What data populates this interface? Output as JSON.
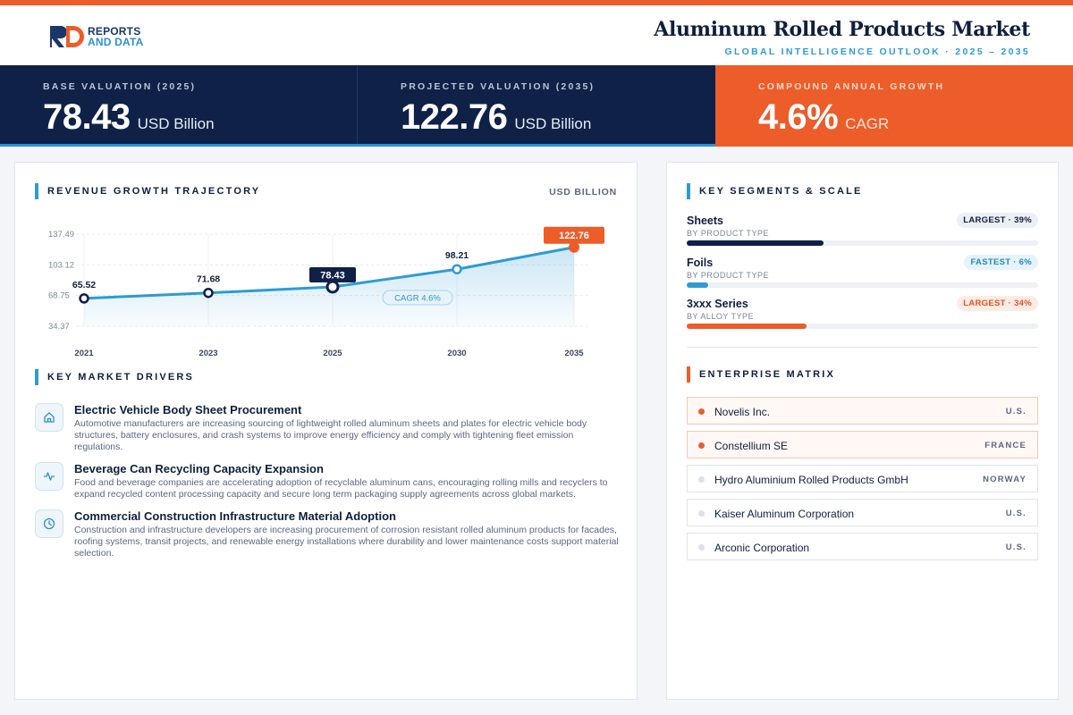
{
  "header": {
    "logo_line1": "REPORTS",
    "logo_line2": "AND DATA",
    "title": "Aluminum Rolled Products Market",
    "subtitle": "GLOBAL INTELLIGENCE OUTLOOK  ·  2025 – 2035"
  },
  "kpis": [
    {
      "label": "BASE VALUATION (2025)",
      "value": "78.43",
      "unit": "USD Billion"
    },
    {
      "label": "PROJECTED VALUATION (2035)",
      "value": "122.76",
      "unit": "USD Billion"
    },
    {
      "label": "COMPOUND ANNUAL GROWTH",
      "value": "4.6%",
      "unit": "CAGR"
    }
  ],
  "trajectory": {
    "title": "REVENUE GROWTH TRAJECTORY",
    "unit": "USD BILLION",
    "cagr_label": "CAGR 4.6%"
  },
  "chart_data": {
    "type": "line",
    "title": "REVENUE GROWTH TRAJECTORY",
    "ylabel": "USD BILLION",
    "x": [
      "2021",
      "2023",
      "2025",
      "2030",
      "2035"
    ],
    "values": [
      65.52,
      71.68,
      78.43,
      98.21,
      122.76
    ],
    "value_labels": [
      "65.52",
      "71.68",
      "78.43",
      "98.21",
      "122.76"
    ],
    "yticks": [
      34.37,
      68.75,
      103.12,
      137.49
    ],
    "ytick_labels": [
      "34.37",
      "68.75",
      "103.12",
      "137.49"
    ],
    "ylim": [
      34.37,
      137.49
    ],
    "grid": true,
    "highlight": {
      "2025": "base",
      "2035": "projected"
    },
    "colors": {
      "line": "#2f9bd3",
      "base": "#0f2147",
      "projected": "#ec5d2a"
    }
  },
  "drivers": {
    "title": "KEY MARKET DRIVERS",
    "items": [
      {
        "icon": "home-icon",
        "title": "Electric Vehicle Body Sheet Procurement",
        "desc": "Automotive manufacturers are increasing sourcing of lightweight rolled aluminum sheets and plates for electric vehicle body structures, battery enclosures, and crash systems to improve energy efficiency and comply with tightening fleet emission regulations."
      },
      {
        "icon": "activity-icon",
        "title": "Beverage Can Recycling Capacity Expansion",
        "desc": "Food and beverage companies are accelerating adoption of recyclable aluminum cans, encouraging rolling mills and recyclers to expand recycled content processing capacity and secure long term packaging supply agreements across global markets."
      },
      {
        "icon": "clock-icon",
        "title": "Commercial Construction Infrastructure Material Adoption",
        "desc": "Construction and infrastructure developers are increasing procurement of corrosion resistant rolled aluminum products for facades, roofing systems, transit projects, and renewable energy installations where durability and lower maintenance costs support material selection."
      }
    ]
  },
  "segments": {
    "title": "KEY SEGMENTS & SCALE",
    "items": [
      {
        "name": "Sheets",
        "sub": "BY PRODUCT TYPE",
        "badge": "LARGEST · 39%",
        "share": 0.39,
        "color": "#0f2147",
        "badge_bg": "#eceff4",
        "badge_fg": "#0f1f3d"
      },
      {
        "name": "Foils",
        "sub": "BY PRODUCT TYPE",
        "badge": "FASTEST · 6%",
        "share": 0.06,
        "color": "#2f9bd3",
        "badge_bg": "#e6f3fb",
        "badge_fg": "#1f8ac6"
      },
      {
        "name": "3xxx Series",
        "sub": "BY ALLOY TYPE",
        "badge": "LARGEST · 34%",
        "share": 0.34,
        "color": "#ec5d2a",
        "badge_bg": "#fdece5",
        "badge_fg": "#e0541f"
      }
    ]
  },
  "enterprise": {
    "title": "ENTERPRISE MATRIX",
    "items": [
      {
        "name": "Novelis Inc.",
        "country": "U.S.",
        "highlight": true
      },
      {
        "name": "Constellium SE",
        "country": "FRANCE",
        "highlight": true
      },
      {
        "name": "Hydro Aluminium Rolled Products GmbH",
        "country": "NORWAY",
        "highlight": false
      },
      {
        "name": "Kaiser Aluminum Corporation",
        "country": "U.S.",
        "highlight": false
      },
      {
        "name": "Arconic Corporation",
        "country": "U.S.",
        "highlight": false
      }
    ]
  }
}
